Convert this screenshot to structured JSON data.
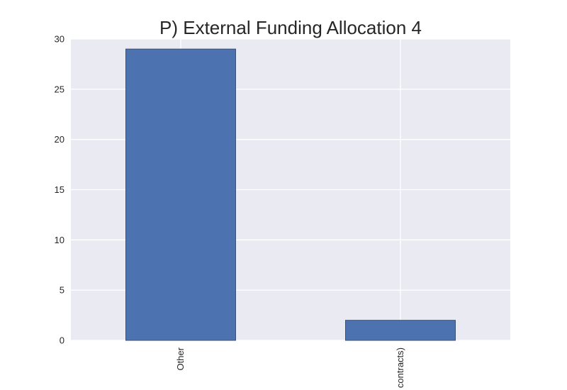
{
  "chart_data": {
    "type": "bar",
    "title": "P) External Funding Allocation 4",
    "categories": [
      "Other",
      "contracts)"
    ],
    "values": [
      29,
      2
    ],
    "ylim": [
      0,
      30
    ],
    "yticks": [
      0,
      5,
      10,
      15,
      20,
      25,
      30
    ],
    "xlabel": "",
    "ylabel": "",
    "grid": true,
    "colors": {
      "bar": "#4c72b0",
      "plot_background": "#eaeaf2",
      "grid": "#ffffff",
      "text": "#262626"
    }
  }
}
